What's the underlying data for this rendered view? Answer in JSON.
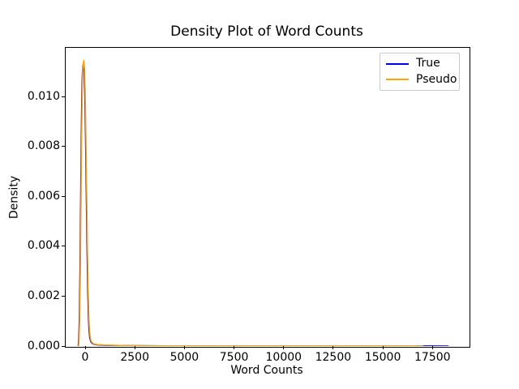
{
  "chart_data": {
    "type": "line",
    "title": "Density Plot of Word Counts",
    "xlabel": "Word Counts",
    "ylabel": "Density",
    "grid": false,
    "legend_position": "upper right",
    "legend_labels": [
      "True",
      "Pseudo"
    ],
    "xlim": [
      -1021,
      19325
    ],
    "ylim": [
      0,
      0.01198
    ],
    "x_ticks": [
      0,
      2500,
      5000,
      7500,
      10000,
      12500,
      15000,
      17500
    ],
    "x_tick_labels": [
      "0",
      "2500",
      "5000",
      "7500",
      "10000",
      "12500",
      "15000",
      "17500"
    ],
    "y_ticks": [
      0.0,
      0.002,
      0.004,
      0.006,
      0.008,
      0.01
    ],
    "y_tick_labels": [
      "0.000",
      "0.002",
      "0.004",
      "0.006",
      "0.008",
      "0.010"
    ],
    "peak_description": "Both densities spike sharply near word count 0 with peak density about 0.0114, then lie flat near 0 out to ~17000 (Pseudo) and ~18300 (True)",
    "series": [
      {
        "name": "True",
        "color": "#0000ee",
        "points": [
          [
            -350,
            0.0
          ],
          [
            -320,
            0.0003
          ],
          [
            -290,
            0.0012
          ],
          [
            -260,
            0.003
          ],
          [
            -230,
            0.0055
          ],
          [
            -200,
            0.008
          ],
          [
            -170,
            0.0099
          ],
          [
            -140,
            0.0109
          ],
          [
            -110,
            0.01125
          ],
          [
            -80,
            0.0113
          ],
          [
            -50,
            0.011
          ],
          [
            -20,
            0.0102
          ],
          [
            10,
            0.0089
          ],
          [
            40,
            0.0072
          ],
          [
            70,
            0.0054
          ],
          [
            100,
            0.0037
          ],
          [
            130,
            0.0023
          ],
          [
            160,
            0.0013
          ],
          [
            190,
            0.0007
          ],
          [
            230,
            0.00035
          ],
          [
            280,
            0.00018
          ],
          [
            380,
            9e-05
          ],
          [
            600,
            5e-05
          ],
          [
            1000,
            3e-05
          ],
          [
            2000,
            2e-05
          ],
          [
            4000,
            1e-05
          ],
          [
            8000,
            1e-05
          ],
          [
            12000,
            1e-05
          ],
          [
            15000,
            1e-05
          ],
          [
            16500,
            1e-05
          ],
          [
            18310,
            0.0
          ]
        ]
      },
      {
        "name": "Pseudo",
        "color": "#ffa500",
        "points": [
          [
            -330,
            0.0
          ],
          [
            -300,
            0.0003
          ],
          [
            -270,
            0.0012
          ],
          [
            -240,
            0.003
          ],
          [
            -210,
            0.0055
          ],
          [
            -180,
            0.008
          ],
          [
            -150,
            0.0099
          ],
          [
            -120,
            0.011
          ],
          [
            -90,
            0.01135
          ],
          [
            -60,
            0.01145
          ],
          [
            -30,
            0.0111
          ],
          [
            0,
            0.0103
          ],
          [
            30,
            0.009
          ],
          [
            60,
            0.0073
          ],
          [
            90,
            0.0055
          ],
          [
            120,
            0.0038
          ],
          [
            150,
            0.0024
          ],
          [
            180,
            0.0014
          ],
          [
            210,
            0.0008
          ],
          [
            250,
            0.0004
          ],
          [
            300,
            0.0002
          ],
          [
            400,
            0.0001
          ],
          [
            600,
            6e-05
          ],
          [
            1000,
            4e-05
          ],
          [
            2000,
            2e-05
          ],
          [
            4000,
            1e-05
          ],
          [
            8000,
            1e-05
          ],
          [
            12000,
            1e-05
          ],
          [
            15000,
            1e-05
          ],
          [
            16500,
            1e-05
          ],
          [
            17040,
            0.0
          ]
        ]
      }
    ]
  }
}
